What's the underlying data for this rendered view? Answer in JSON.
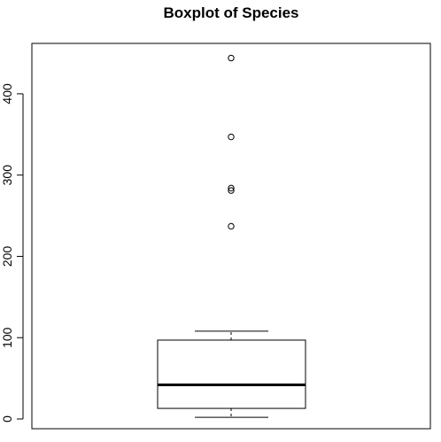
{
  "chart_data": {
    "type": "boxplot",
    "title": "Boxplot of Species",
    "xlabel": "",
    "ylabel": "",
    "ylim": [
      -12,
      462
    ],
    "y_ticks": [
      0,
      100,
      200,
      300,
      400
    ],
    "y_tick_labels": [
      "0",
      "100",
      "200",
      "300",
      "400"
    ],
    "grid": false,
    "box": {
      "whisker_low": 2,
      "q1": 13,
      "median": 42,
      "q3": 97,
      "whisker_high": 108,
      "outliers": [
        237,
        281,
        284,
        347,
        444
      ]
    },
    "colors": {
      "stroke": "#000000",
      "background": "#ffffff"
    }
  }
}
